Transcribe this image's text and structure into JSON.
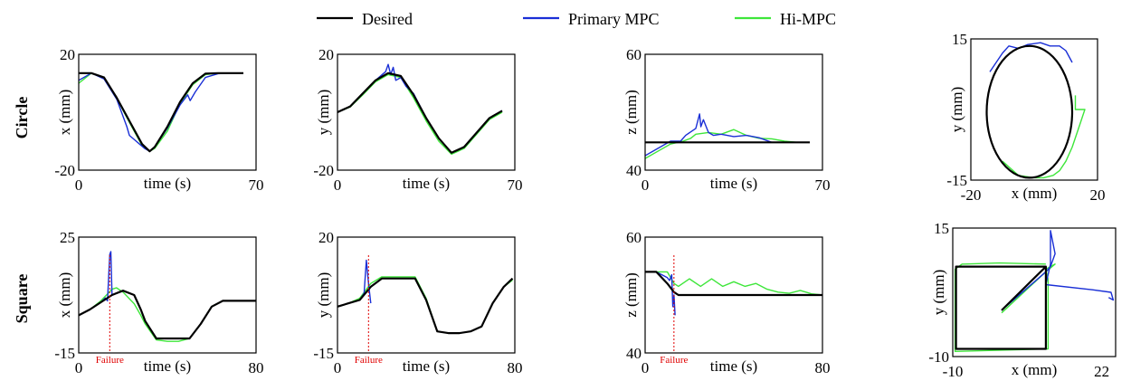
{
  "legend": {
    "items": [
      {
        "label": "Desired",
        "color": "#000000"
      },
      {
        "label": "Primary MPC",
        "color": "#1a2fd6"
      },
      {
        "label": "Hi-MPC",
        "color": "#3ee63a"
      }
    ]
  },
  "rows": [
    {
      "label": "Circle"
    },
    {
      "label": "Square"
    }
  ],
  "failure_label": "Failure",
  "colors": {
    "desired": "#000000",
    "primary": "#1a2fd6",
    "himpc": "#3ee63a",
    "failure": "#e00000"
  },
  "chart_data": [
    {
      "type": "line",
      "row": "Circle",
      "xlabel": "time (s)",
      "ylabel": "x (mm)",
      "xlim": [
        0,
        70
      ],
      "ylim": [
        -20,
        20
      ],
      "xticks": [
        "0",
        "70"
      ],
      "yticks": [
        "20",
        "-20"
      ],
      "series": [
        {
          "name": "Desired",
          "x": [
            0,
            5,
            10,
            15,
            20,
            25,
            28,
            30,
            35,
            40,
            45,
            50,
            55,
            60,
            65
          ],
          "y": [
            13.5,
            13.5,
            12,
            5,
            -3,
            -11,
            -13.5,
            -12,
            -5,
            3.5,
            10,
            13.3,
            13.5,
            13.5,
            13.5
          ]
        },
        {
          "name": "Primary MPC",
          "x": [
            0,
            5,
            10,
            15,
            19,
            20,
            22,
            24,
            26,
            28,
            30,
            35,
            40,
            43,
            44,
            46,
            50,
            55,
            60,
            65
          ],
          "y": [
            11,
            13.5,
            11.5,
            4.5,
            -5,
            -8,
            -9.5,
            -11,
            -12.5,
            -13.5,
            -12,
            -5.5,
            2.5,
            6,
            4,
            7,
            12,
            13.3,
            13.5,
            13.5
          ]
        },
        {
          "name": "Hi-MPC",
          "x": [
            0,
            5,
            10,
            15,
            20,
            25,
            28,
            30,
            35,
            40,
            45,
            50,
            55,
            60,
            65
          ],
          "y": [
            10,
            13.5,
            11.8,
            4.8,
            -3.5,
            -11.5,
            -13.5,
            -12.5,
            -6.5,
            3,
            9.5,
            13,
            13.5,
            13.5,
            13.5
          ]
        }
      ]
    },
    {
      "type": "line",
      "row": "Circle",
      "xlabel": "time (s)",
      "ylabel": "y (mm)",
      "xlim": [
        0,
        70
      ],
      "ylim": [
        -20,
        20
      ],
      "xticks": [
        "0",
        "70"
      ],
      "yticks": [
        "20",
        "-20"
      ],
      "series": [
        {
          "name": "Desired",
          "x": [
            0,
            5,
            10,
            15,
            20,
            25,
            30,
            35,
            40,
            45,
            50,
            55,
            60,
            65
          ],
          "y": [
            0,
            2,
            6.5,
            11,
            13.5,
            12.5,
            6,
            -2,
            -9,
            -14,
            -12,
            -7,
            -2,
            0.5
          ]
        },
        {
          "name": "Primary MPC",
          "x": [
            0,
            5,
            10,
            15,
            19,
            20,
            21,
            22,
            23,
            25,
            27,
            30,
            35,
            40,
            45,
            50,
            55,
            60,
            65
          ],
          "y": [
            0,
            2,
            6.5,
            11,
            14,
            16.5,
            13,
            15.5,
            11,
            12,
            9,
            6.5,
            -2,
            -9,
            -14,
            -12,
            -7,
            -2,
            0.5
          ]
        },
        {
          "name": "Hi-MPC",
          "x": [
            0,
            5,
            10,
            15,
            20,
            25,
            30,
            35,
            40,
            45,
            50,
            55,
            60,
            65
          ],
          "y": [
            0,
            1.8,
            6,
            10.5,
            13,
            12,
            5,
            -3,
            -10,
            -14.5,
            -12.5,
            -7.5,
            -2.5,
            0
          ]
        }
      ]
    },
    {
      "type": "line",
      "row": "Circle",
      "xlabel": "time (s)",
      "ylabel": "z (mm)",
      "xlim": [
        0,
        70
      ],
      "ylim": [
        40,
        60
      ],
      "xticks": [
        "0",
        "70"
      ],
      "yticks": [
        "60",
        "40"
      ],
      "series": [
        {
          "name": "Desired",
          "x": [
            0,
            65
          ],
          "y": [
            44.8,
            44.8
          ]
        },
        {
          "name": "Primary MPC",
          "x": [
            0,
            10,
            14,
            16,
            20,
            21.5,
            22,
            23,
            25,
            27,
            30,
            35,
            40,
            45,
            50
          ],
          "y": [
            42.5,
            45,
            45,
            46,
            47.2,
            49.7,
            47.5,
            48.7,
            46.5,
            46,
            46.2,
            45.8,
            46,
            45.6,
            44.8
          ]
        },
        {
          "name": "Hi-MPC",
          "x": [
            0,
            10,
            15,
            18,
            20,
            25,
            30,
            35,
            40,
            45,
            50,
            55,
            60,
            65
          ],
          "y": [
            42,
            44.5,
            45,
            45.5,
            46.2,
            46.5,
            46.2,
            47,
            46,
            45.5,
            45.4,
            45,
            44.8,
            44.8
          ]
        }
      ]
    },
    {
      "type": "line",
      "row": "Circle",
      "xlabel": "x (mm)",
      "ylabel": "y (mm)",
      "xlim": [
        -20,
        20
      ],
      "ylim": [
        -15,
        15
      ],
      "xticks": [
        "-20",
        "20"
      ],
      "yticks": [
        "15",
        "-15"
      ],
      "series": [
        {
          "name": "Desired",
          "shape": "circle",
          "center": [
            -1.5,
            -0.5
          ],
          "radius": [
            13.5,
            14
          ]
        },
        {
          "name": "Primary MPC",
          "x": [
            -14,
            -12,
            -10,
            -8,
            -5,
            -2,
            2,
            5,
            8,
            10,
            12
          ],
          "y": [
            8,
            10,
            12,
            13.5,
            13,
            13.8,
            14.2,
            13.5,
            13.5,
            12.5,
            10
          ]
        },
        {
          "name": "Hi-MPC",
          "x": [
            13,
            13,
            16,
            14.5,
            12,
            10,
            8,
            6,
            3,
            0,
            -5,
            -10
          ],
          "y": [
            3,
            0,
            0,
            -3,
            -8,
            -11,
            -13,
            -14,
            -14.5,
            -14.5,
            -14,
            -11
          ]
        }
      ]
    },
    {
      "type": "line",
      "row": "Square",
      "xlabel": "time (s)",
      "ylabel": "x (mm)",
      "xlim": [
        0,
        80
      ],
      "ylim": [
        -15,
        25
      ],
      "xticks": [
        "0",
        "80"
      ],
      "yticks": [
        "25",
        "-15"
      ],
      "series": [
        {
          "name": "Desired",
          "x": [
            0,
            5,
            10,
            15,
            20,
            25,
            28,
            30,
            35,
            40,
            45,
            50,
            55,
            60,
            65,
            70,
            75,
            80
          ],
          "y": [
            -2,
            0,
            2.5,
            5,
            6.5,
            5,
            0,
            -4,
            -10,
            -10,
            -10,
            -10,
            -5,
            1,
            3,
            3,
            3,
            3
          ]
        },
        {
          "name": "Primary MPC",
          "x": [
            0,
            5,
            10,
            12,
            13,
            14,
            14.5,
            15
          ],
          "y": [
            -2,
            0,
            2.5,
            4,
            3,
            19,
            20,
            5
          ]
        },
        {
          "name": "Hi-MPC",
          "x": [
            0,
            5,
            10,
            15,
            17,
            20,
            25,
            28,
            30,
            35,
            40,
            45,
            50,
            55,
            60,
            65,
            70,
            75,
            80
          ],
          "y": [
            -2,
            0,
            3,
            7,
            7.5,
            6,
            2,
            -2,
            -5,
            -10.5,
            -11,
            -11,
            -10,
            -5,
            1,
            3,
            3,
            3,
            3
          ]
        }
      ],
      "failure_x": 14
    },
    {
      "type": "line",
      "row": "Square",
      "xlabel": "time (s)",
      "ylabel": "y (mm)",
      "xlim": [
        0,
        80
      ],
      "ylim": [
        -15,
        20
      ],
      "xticks": [
        "0",
        "80"
      ],
      "yticks": [
        "20",
        "-15"
      ],
      "series": [
        {
          "name": "Desired",
          "x": [
            0,
            5,
            10,
            15,
            20,
            25,
            30,
            35,
            40,
            45,
            50,
            55,
            60,
            65,
            70,
            75,
            79
          ],
          "y": [
            -1,
            0,
            1,
            5,
            7.5,
            7.5,
            7.5,
            7.5,
            1,
            -8.5,
            -9,
            -9,
            -8.5,
            -7,
            0,
            5,
            7.5
          ]
        },
        {
          "name": "Primary MPC",
          "x": [
            0,
            5,
            10,
            12,
            13,
            14,
            15
          ],
          "y": [
            -1,
            0,
            1,
            3,
            13,
            6,
            0
          ]
        },
        {
          "name": "Hi-MPC",
          "x": [
            0,
            5,
            10,
            15,
            20,
            25,
            30,
            35,
            40,
            45,
            50,
            55,
            60,
            65,
            70,
            75,
            79
          ],
          "y": [
            -1,
            0,
            1.5,
            6,
            8,
            8,
            8,
            8,
            1.5,
            -8.5,
            -9,
            -9,
            -8.5,
            -7,
            0,
            5,
            7
          ]
        }
      ],
      "failure_x": 14
    },
    {
      "type": "line",
      "row": "Square",
      "xlabel": "time (s)",
      "ylabel": "z (mm)",
      "xlim": [
        0,
        80
      ],
      "ylim": [
        40,
        60
      ],
      "xticks": [
        "0",
        "80"
      ],
      "yticks": [
        "60",
        "40"
      ],
      "series": [
        {
          "name": "Desired",
          "x": [
            0,
            5,
            10,
            13,
            15,
            20,
            30,
            40,
            50,
            60,
            70,
            80
          ],
          "y": [
            54,
            54,
            52,
            50.5,
            50,
            50,
            50,
            50,
            50,
            50,
            50,
            50
          ]
        },
        {
          "name": "Primary MPC",
          "x": [
            0,
            5,
            10,
            11,
            12,
            12.5,
            13,
            13.5
          ],
          "y": [
            54,
            54,
            53,
            52.5,
            53.5,
            48,
            50,
            46.5
          ]
        },
        {
          "name": "Hi-MPC",
          "x": [
            0,
            5,
            10,
            13,
            15,
            20,
            25,
            30,
            35,
            40,
            45,
            50,
            55,
            60,
            65,
            70,
            75,
            80
          ],
          "y": [
            54,
            54,
            54,
            52,
            51.5,
            52.8,
            51.5,
            52.8,
            51.5,
            52.3,
            51.5,
            52,
            51,
            50.5,
            50.3,
            50.8,
            50.2,
            50
          ]
        }
      ],
      "failure_x": 13
    },
    {
      "type": "line",
      "row": "Square",
      "xlabel": "x (mm)",
      "ylabel": "y (mm)",
      "xlim": [
        -10,
        25
      ],
      "ylim": [
        -10,
        15
      ],
      "xticks": [
        "-10",
        "22"
      ],
      "yticks": [
        "15",
        "-10"
      ],
      "series": [
        {
          "name": "Desired",
          "x": [
            -9.3,
            10,
            10,
            -9.3,
            -9.3,
            10,
            0.5
          ],
          "y": [
            7.5,
            7.5,
            -8.5,
            -8.5,
            7.5,
            7.5,
            -1
          ]
        },
        {
          "name": "Primary MPC",
          "x": [
            0.5,
            10,
            11,
            12,
            11,
            11,
            10,
            20,
            24,
            24.5,
            23.5
          ],
          "y": [
            -1,
            6.5,
            7.5,
            10,
            14.5,
            8,
            4,
            3,
            2.5,
            1,
            1.5
          ]
        },
        {
          "name": "Hi-MPC",
          "x": [
            0.5,
            10,
            12,
            11,
            10,
            10.5,
            10.5,
            -9.5,
            -9.5,
            -9.5,
            -8,
            -7.5,
            0,
            10
          ],
          "y": [
            -1.5,
            6.5,
            8,
            7.5,
            7,
            5,
            -8.5,
            -9,
            -4,
            7,
            8,
            8,
            8.2,
            8
          ]
        }
      ],
      "failure_point": [
        11,
        12
      ]
    }
  ]
}
